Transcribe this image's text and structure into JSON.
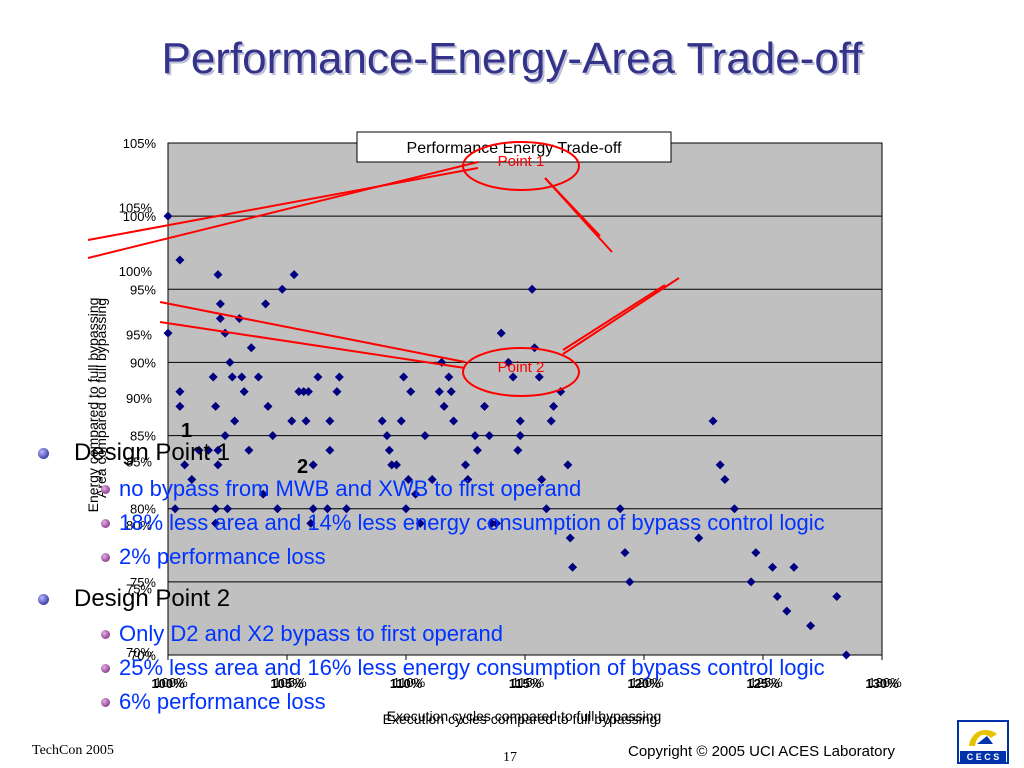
{
  "slide": {
    "title": "Performance-Energy-Area Trade-off",
    "footer_left": "TechCon 2005",
    "page_number": "17",
    "footer_right": "Copyright © 2005  UCI ACES Laboratory",
    "logo_text": "C E C S"
  },
  "bullets": [
    {
      "heading": "Design Point 1",
      "items": [
        "no bypass from MWB and XWB to first operand",
        "18% less area and 14% less energy consumption of bypass control logic",
        "2% performance loss"
      ]
    },
    {
      "heading": "Design Point 2",
      "items": [
        "Only D2 and X2 bypass to first operand",
        "25% less area and 16% less energy consumption of bypass control logic",
        "6% performance loss"
      ]
    }
  ],
  "chart_data": {
    "type": "scatter",
    "title": "Performance Energy Trade-off",
    "xlabel": "Execution cycles compared to full bypassing",
    "ylabel": "Energy compared to full bypassing",
    "ylabel_overlay": "Area compared to full bypassing",
    "xlim": [
      100,
      130
    ],
    "ylim": [
      70,
      105
    ],
    "grid": true,
    "x_ticks": [
      "100%",
      "105%",
      "110%",
      "115%",
      "120%",
      "125%",
      "130%"
    ],
    "y_ticks": [
      "70%",
      "75%",
      "80%",
      "85%",
      "90%",
      "95%",
      "100%",
      "105%"
    ],
    "overlay_y_ticks": [
      "70%",
      "75%",
      "80%",
      "85%",
      "90%",
      "95%",
      "100%",
      "105%"
    ],
    "marker_color": "#000080",
    "annotations": {
      "point1_label": "Point 1",
      "point2_label": "Point 2",
      "marker1_label": "1",
      "marker2_label": "2"
    },
    "points": [
      [
        100,
        100
      ],
      [
        100,
        92
      ],
      [
        100.3,
        80
      ],
      [
        100.5,
        97
      ],
      [
        100.5,
        88
      ],
      [
        100.5,
        87
      ],
      [
        100.7,
        83
      ],
      [
        101,
        82
      ],
      [
        101.3,
        84
      ],
      [
        101.7,
        84
      ],
      [
        101.9,
        89
      ],
      [
        102,
        87
      ],
      [
        102,
        80
      ],
      [
        102,
        79
      ],
      [
        102.1,
        84
      ],
      [
        102.1,
        83
      ],
      [
        102.1,
        96
      ],
      [
        102.2,
        94
      ],
      [
        102.2,
        93
      ],
      [
        102.4,
        92
      ],
      [
        102.4,
        85
      ],
      [
        102.6,
        90
      ],
      [
        102.5,
        80
      ],
      [
        102.7,
        89
      ],
      [
        102.8,
        86
      ],
      [
        103,
        93
      ],
      [
        103.1,
        89
      ],
      [
        103.2,
        88
      ],
      [
        103.4,
        84
      ],
      [
        103.5,
        91
      ],
      [
        103.8,
        89
      ],
      [
        104,
        81
      ],
      [
        104.1,
        94
      ],
      [
        104.2,
        87
      ],
      [
        104.4,
        85
      ],
      [
        104.6,
        80
      ],
      [
        104.8,
        95
      ],
      [
        105.2,
        86
      ],
      [
        105.3,
        96
      ],
      [
        105.5,
        88
      ],
      [
        105.7,
        88
      ],
      [
        105.8,
        86
      ],
      [
        105.9,
        88
      ],
      [
        106,
        79
      ],
      [
        106.1,
        83
      ],
      [
        106.1,
        80
      ],
      [
        106.3,
        89
      ],
      [
        106.7,
        80
      ],
      [
        106.8,
        86
      ],
      [
        106.8,
        84
      ],
      [
        107.1,
        88
      ],
      [
        107.2,
        89
      ],
      [
        107.5,
        80
      ],
      [
        109,
        86
      ],
      [
        109.2,
        85
      ],
      [
        109.3,
        84
      ],
      [
        109.4,
        83
      ],
      [
        109.6,
        83
      ],
      [
        109.8,
        86
      ],
      [
        109.9,
        89
      ],
      [
        110,
        80
      ],
      [
        110.1,
        82
      ],
      [
        110.2,
        88
      ],
      [
        110.4,
        81
      ],
      [
        110.6,
        79
      ],
      [
        110.8,
        85
      ],
      [
        111.1,
        82
      ],
      [
        111.4,
        88
      ],
      [
        111.5,
        90
      ],
      [
        111.6,
        87
      ],
      [
        111.8,
        89
      ],
      [
        111.9,
        88
      ],
      [
        112,
        86
      ],
      [
        112.5,
        83
      ],
      [
        112.6,
        82
      ],
      [
        112.9,
        85
      ],
      [
        113,
        84
      ],
      [
        113.3,
        87
      ],
      [
        113.5,
        85
      ],
      [
        113.6,
        79
      ],
      [
        113.8,
        79
      ],
      [
        114,
        92
      ],
      [
        114.3,
        90
      ],
      [
        114.5,
        89
      ],
      [
        114.7,
        84
      ],
      [
        114.8,
        85
      ],
      [
        114.8,
        86
      ],
      [
        115.3,
        95
      ],
      [
        115.4,
        91
      ],
      [
        115.6,
        89
      ],
      [
        115.7,
        82
      ],
      [
        115.9,
        80
      ],
      [
        116.1,
        86
      ],
      [
        116.2,
        87
      ],
      [
        116.5,
        88
      ],
      [
        116.8,
        83
      ],
      [
        116.9,
        78
      ],
      [
        117,
        76
      ],
      [
        119,
        80
      ],
      [
        119.2,
        77
      ],
      [
        119.4,
        75
      ],
      [
        122.3,
        78
      ],
      [
        122.9,
        86
      ],
      [
        123.2,
        83
      ],
      [
        123.4,
        82
      ],
      [
        123.8,
        80
      ],
      [
        124.5,
        75
      ],
      [
        124.7,
        77
      ],
      [
        125.4,
        76
      ],
      [
        125.6,
        74
      ],
      [
        126,
        73
      ],
      [
        126.3,
        76
      ],
      [
        127,
        72
      ],
      [
        128.1,
        74
      ],
      [
        128.5,
        70
      ]
    ]
  }
}
